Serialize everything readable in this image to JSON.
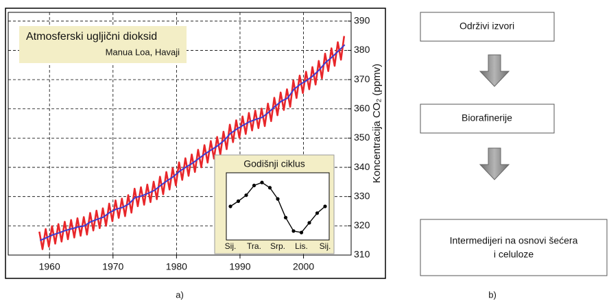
{
  "chart_data": [
    {
      "type": "line",
      "title": "Atmosferski ugljični dioksid",
      "subtitle": "Manua Loa, Havaji",
      "ylabel": "Koncentracija CO₂ (ppmv)",
      "xlim": [
        1953.5,
        2007.5
      ],
      "xticks": [
        1960,
        1970,
        1980,
        1990,
        2000
      ],
      "ylim": [
        310,
        393
      ],
      "yticks": [
        310,
        320,
        330,
        340,
        350,
        360,
        370,
        380,
        390
      ],
      "grid": true,
      "series": [
        {
          "color": "#e8262a",
          "x": [
            1958.4,
            1958.9,
            1959.4,
            1959.9,
            1960.4,
            1960.9,
            1961.4,
            1961.9,
            1962.4,
            1962.9,
            1963.4,
            1963.9,
            1964.4,
            1964.9,
            1965.4,
            1965.9,
            1966.4,
            1966.9,
            1967.4,
            1967.9,
            1968.4,
            1968.9,
            1969.4,
            1969.9,
            1970.4,
            1970.9,
            1971.4,
            1971.9,
            1972.4,
            1972.9,
            1973.4,
            1973.9,
            1974.4,
            1974.9,
            1975.4,
            1975.9,
            1976.4,
            1976.9,
            1977.4,
            1977.9,
            1978.4,
            1978.9,
            1979.4,
            1979.9,
            1980.4,
            1980.9,
            1981.4,
            1981.9,
            1982.4,
            1982.9,
            1983.4,
            1983.9,
            1984.4,
            1984.9,
            1985.4,
            1985.9,
            1986.4,
            1986.9,
            1987.4,
            1987.9,
            1988.4,
            1988.9,
            1989.4,
            1989.9,
            1990.4,
            1990.9,
            1991.4,
            1991.9,
            1992.4,
            1992.9,
            1993.4,
            1993.9,
            1994.4,
            1994.9,
            1995.4,
            1995.9,
            1996.4,
            1996.9,
            1997.4,
            1997.9,
            1998.4,
            1998.9,
            1999.4,
            1999.9,
            2000.4,
            2000.9,
            2001.4,
            2001.9,
            2002.4,
            2002.9,
            2003.4,
            2003.9,
            2004.4,
            2004.9,
            2005.4,
            2005.9,
            2006.4
          ],
          "values": [
            318,
            312,
            318.9,
            312.9,
            319.9,
            313.9,
            320.6,
            314.6,
            321.4,
            315.4,
            322,
            316,
            322.6,
            316.6,
            323,
            317,
            324.4,
            318.4,
            325.2,
            319.2,
            326,
            320,
            327.6,
            321.6,
            328.7,
            322.7,
            329.3,
            323.3,
            330.5,
            324.5,
            332.7,
            326.7,
            333.2,
            327.2,
            334.1,
            328.1,
            335.1,
            329.1,
            336.8,
            330.8,
            338.4,
            332.4,
            339.8,
            333.8,
            341.7,
            335.7,
            343.1,
            337.1,
            344.4,
            338.4,
            346,
            340,
            347.6,
            341.6,
            349,
            343,
            350.4,
            344.4,
            352.2,
            346.2,
            354.6,
            348.6,
            356.1,
            350.1,
            357.4,
            351.4,
            358.6,
            352.6,
            359.4,
            353.4,
            360.1,
            354.1,
            361.8,
            355.8,
            363.8,
            357.8,
            365.6,
            359.6,
            366.7,
            360.7,
            369.7,
            363.7,
            371.4,
            365.4,
            372.7,
            366.7,
            374.3,
            368.3,
            376.4,
            370.4,
            378.9,
            372.9,
            380.7,
            374.7,
            382.8,
            376.8,
            384.9
          ]
        },
        {
          "color": "#3b3bd0",
          "x": [
            1958.5,
            1959.5,
            1960.5,
            1961.5,
            1962.5,
            1963.5,
            1964.5,
            1965.5,
            1966.5,
            1967.5,
            1968.5,
            1969.5,
            1970.5,
            1971.5,
            1972.5,
            1973.5,
            1974.5,
            1975.5,
            1976.5,
            1977.5,
            1978.5,
            1979.5,
            1980.5,
            1981.5,
            1982.5,
            1983.5,
            1984.5,
            1985.5,
            1986.5,
            1987.5,
            1988.5,
            1989.5,
            1990.5,
            1991.5,
            1992.5,
            1993.5,
            1994.5,
            1995.5,
            1996.5,
            1997.5,
            1998.5,
            1999.5,
            2000.5,
            2001.5,
            2002.5,
            2003.5,
            2004.5,
            2005.5,
            2006.5
          ],
          "values": [
            315,
            315.9,
            316.9,
            317.6,
            318.4,
            319,
            319.6,
            320,
            321.4,
            322.2,
            323,
            324.6,
            325.7,
            326.3,
            327.5,
            329.7,
            330.2,
            331.1,
            332.1,
            333.8,
            335.4,
            336.8,
            338.7,
            340.1,
            341.4,
            343,
            344.6,
            346,
            347.4,
            349.2,
            351.6,
            353.1,
            354.4,
            355.6,
            356.4,
            357.1,
            358.8,
            360.8,
            362.6,
            363.7,
            366.7,
            368.4,
            369.7,
            371.3,
            373.4,
            375.9,
            377.7,
            379.8,
            381.9
          ]
        }
      ]
    },
    {
      "type": "line",
      "title": "Godišnji ciklus",
      "categories": [
        "Sij.",
        null,
        null,
        "Tra.",
        null,
        null,
        "Srp.",
        null,
        null,
        "Lis.",
        null,
        null,
        "Sij."
      ],
      "ylim": [
        -4.5,
        4.5
      ],
      "series": [
        {
          "color": "#000000",
          "values": [
            0,
            0.7,
            1.5,
            2.8,
            3.2,
            2.5,
            1,
            -1.5,
            -3.3,
            -3.5,
            -2.2,
            -0.9,
            0
          ]
        }
      ]
    }
  ],
  "flowchart": {
    "nodes": [
      {
        "label": [
          "Održivi izvori"
        ]
      },
      {
        "label": [
          "Biorafinerije"
        ]
      },
      {
        "label": [
          "Intermedijeri na osnovi šećera",
          "i celuloze"
        ]
      }
    ]
  },
  "panels": [
    "a)",
    "b)"
  ]
}
